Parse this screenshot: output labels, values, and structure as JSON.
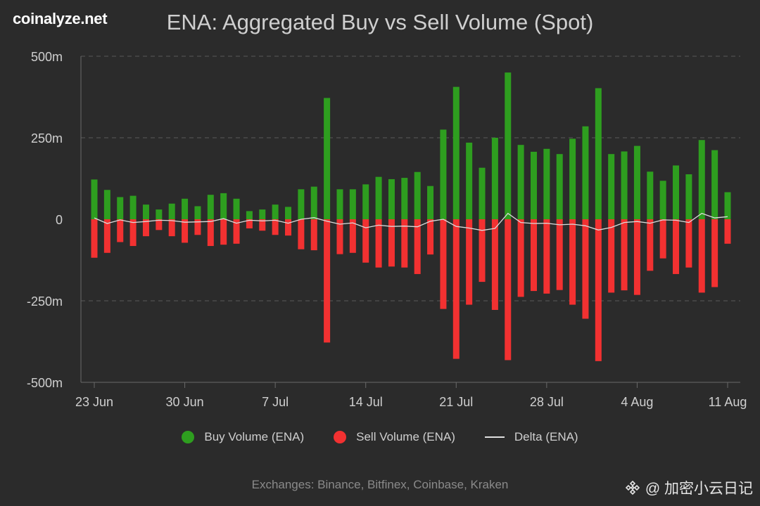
{
  "brand": "coinalyze.net",
  "footer": "Exchanges: Binance, Bitfinex, Coinbase, Kraken",
  "watermark": "@ 加密小云日记",
  "colors": {
    "buy": "#2e9e1f",
    "sell": "#f23131",
    "delta": "#dcdcdc",
    "grid": "#5a5a5a",
    "text": "#cfcfcf"
  },
  "chart_data": {
    "type": "bar",
    "title": "ENA: Aggregated Buy vs Sell Volume (Spot)",
    "ylim": [
      -500,
      500
    ],
    "y_ticks": [
      500,
      250,
      0,
      -250,
      -500
    ],
    "y_tick_labels": [
      "500m",
      "250m",
      "0",
      "-250m",
      "-500m"
    ],
    "x_tick_labels": [
      "23 Jun",
      "30 Jun",
      "7 Jul",
      "14 Jul",
      "21 Jul",
      "28 Jul",
      "4 Aug",
      "11 Aug"
    ],
    "x_tick_dates": [
      "2024-06-23",
      "2024-06-30",
      "2024-07-07",
      "2024-07-14",
      "2024-07-21",
      "2024-07-28",
      "2024-08-04",
      "2024-08-11"
    ],
    "grid": true,
    "legend_position": "bottom",
    "dates": [
      "2024-06-23",
      "2024-06-24",
      "2024-06-25",
      "2024-06-26",
      "2024-06-27",
      "2024-06-28",
      "2024-06-29",
      "2024-06-30",
      "2024-07-01",
      "2024-07-02",
      "2024-07-03",
      "2024-07-04",
      "2024-07-05",
      "2024-07-06",
      "2024-07-07",
      "2024-07-08",
      "2024-07-09",
      "2024-07-10",
      "2024-07-11",
      "2024-07-12",
      "2024-07-13",
      "2024-07-14",
      "2024-07-15",
      "2024-07-16",
      "2024-07-17",
      "2024-07-18",
      "2024-07-19",
      "2024-07-20",
      "2024-07-21",
      "2024-07-22",
      "2024-07-23",
      "2024-07-24",
      "2024-07-25",
      "2024-07-26",
      "2024-07-27",
      "2024-07-28",
      "2024-07-29",
      "2024-07-30",
      "2024-07-31",
      "2024-08-01",
      "2024-08-02",
      "2024-08-03",
      "2024-08-04",
      "2024-08-05",
      "2024-08-06",
      "2024-08-07",
      "2024-08-08",
      "2024-08-09",
      "2024-08-10",
      "2024-08-11"
    ],
    "series": [
      {
        "name": "Buy Volume (ENA)",
        "type": "bar",
        "values": [
          122,
          90,
          68,
          72,
          45,
          30,
          48,
          63,
          40,
          75,
          80,
          63,
          25,
          30,
          45,
          38,
          92,
          100,
          372,
          92,
          92,
          107,
          130,
          123,
          127,
          145,
          102,
          275,
          406,
          235,
          158,
          250,
          450,
          228,
          207,
          216,
          200,
          247,
          285,
          402,
          200,
          208,
          225,
          146,
          118,
          165,
          138,
          243,
          212,
          83
        ]
      },
      {
        "name": "Sell Volume (ENA)",
        "type": "bar",
        "values": [
          -118,
          -103,
          -70,
          -82,
          -52,
          -33,
          -52,
          -72,
          -48,
          -82,
          -78,
          -75,
          -28,
          -35,
          -48,
          -50,
          -92,
          -95,
          -378,
          -107,
          -103,
          -133,
          -148,
          -145,
          -148,
          -168,
          -108,
          -275,
          -428,
          -262,
          -192,
          -278,
          -432,
          -238,
          -220,
          -228,
          -217,
          -262,
          -305,
          -435,
          -225,
          -218,
          -232,
          -158,
          -120,
          -168,
          -148,
          -225,
          -208,
          -75
        ]
      },
      {
        "name": "Delta (ENA)",
        "type": "line",
        "values": [
          4,
          -13,
          -2,
          -10,
          -7,
          -3,
          -4,
          -9,
          -8,
          -7,
          2,
          -12,
          -3,
          -5,
          -3,
          -12,
          0,
          5,
          -6,
          -15,
          -11,
          -26,
          -18,
          -22,
          -21,
          -23,
          -6,
          0,
          -22,
          -27,
          -34,
          -28,
          18,
          -10,
          -13,
          -12,
          -17,
          -15,
          -20,
          -33,
          -25,
          -10,
          -7,
          -12,
          -2,
          -3,
          -10,
          18,
          4,
          8
        ]
      }
    ]
  }
}
